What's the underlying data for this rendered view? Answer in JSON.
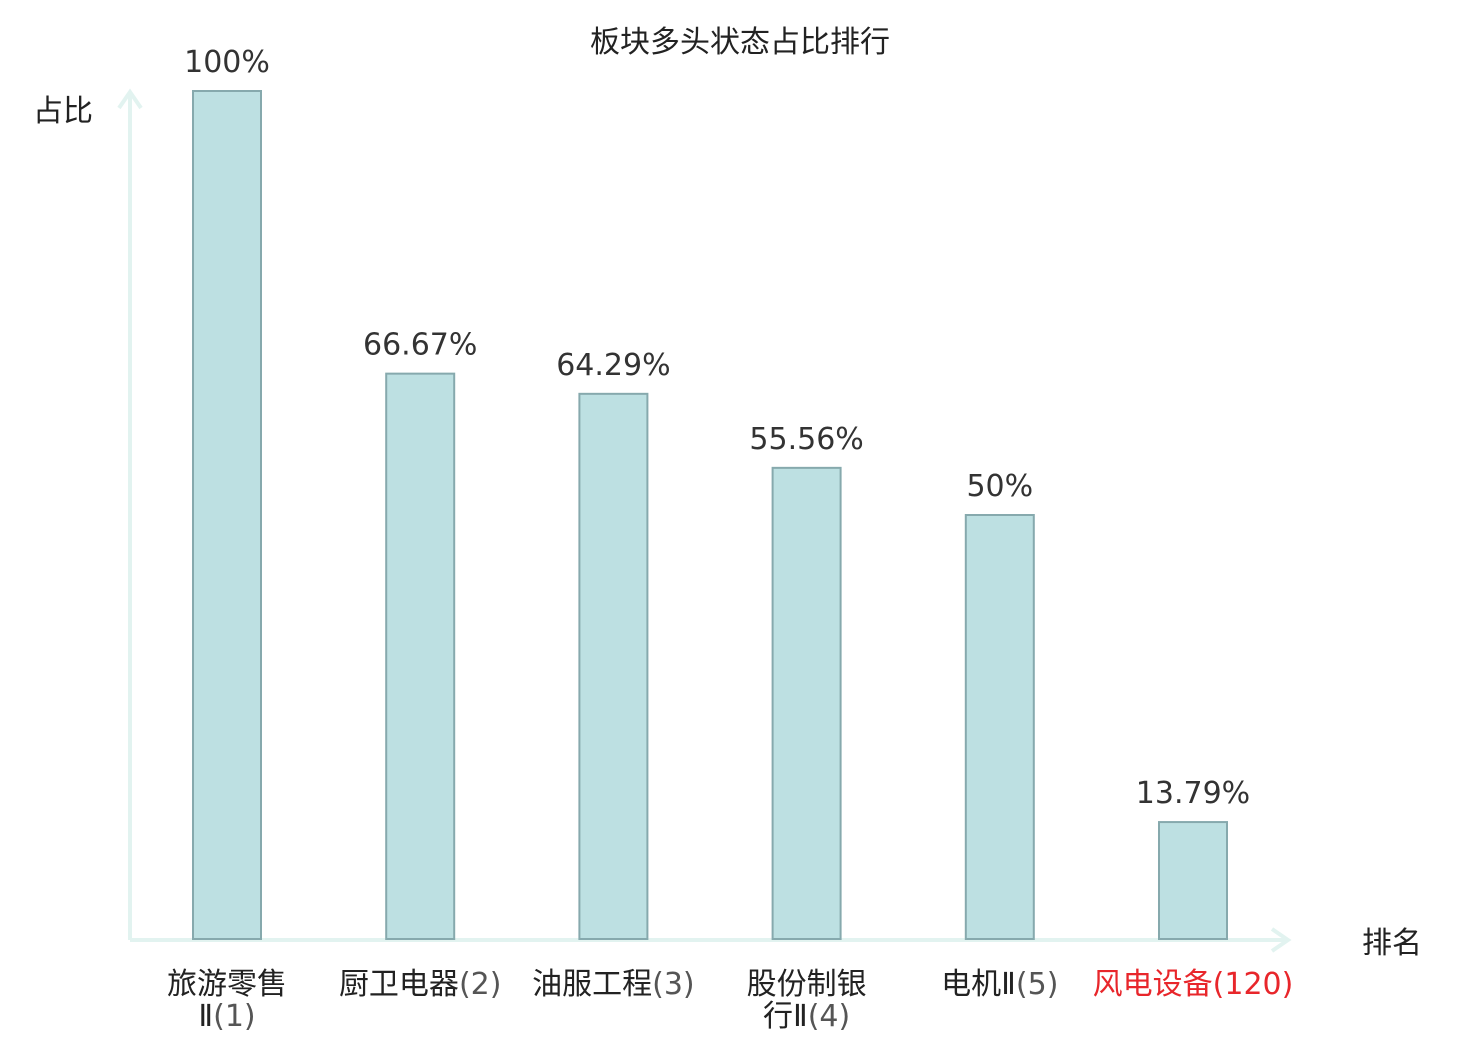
{
  "chart_data": {
    "type": "bar",
    "title": "板块多头状态占比排行",
    "ylabel": "占比",
    "xlabel": "排名",
    "ylim": [
      0,
      100
    ],
    "grid": false,
    "categories": [
      {
        "name_lines": [
          "旅游零售",
          "Ⅱ"
        ],
        "rank": "(1)",
        "highlight": false
      },
      {
        "name_lines": [
          "厨卫电器"
        ],
        "rank": "(2)",
        "highlight": false
      },
      {
        "name_lines": [
          "油服工程"
        ],
        "rank": "(3)",
        "highlight": false
      },
      {
        "name_lines": [
          "股份制银",
          "行Ⅱ"
        ],
        "rank": "(4)",
        "highlight": false
      },
      {
        "name_lines": [
          "电机Ⅱ"
        ],
        "rank": "(5)",
        "highlight": false
      },
      {
        "name_lines": [
          "风电设备"
        ],
        "rank": "(120)",
        "highlight": true
      }
    ],
    "values": [
      100,
      66.67,
      64.29,
      55.56,
      50,
      13.79
    ],
    "value_labels": [
      "100%",
      "66.67%",
      "64.29%",
      "55.56%",
      "50%",
      "13.79%"
    ],
    "colors": {
      "bar_fill": "#bde0e2",
      "bar_stroke": "#86a9ad",
      "axis": "#e2f3f0",
      "highlight_text": "#e8262b"
    }
  }
}
